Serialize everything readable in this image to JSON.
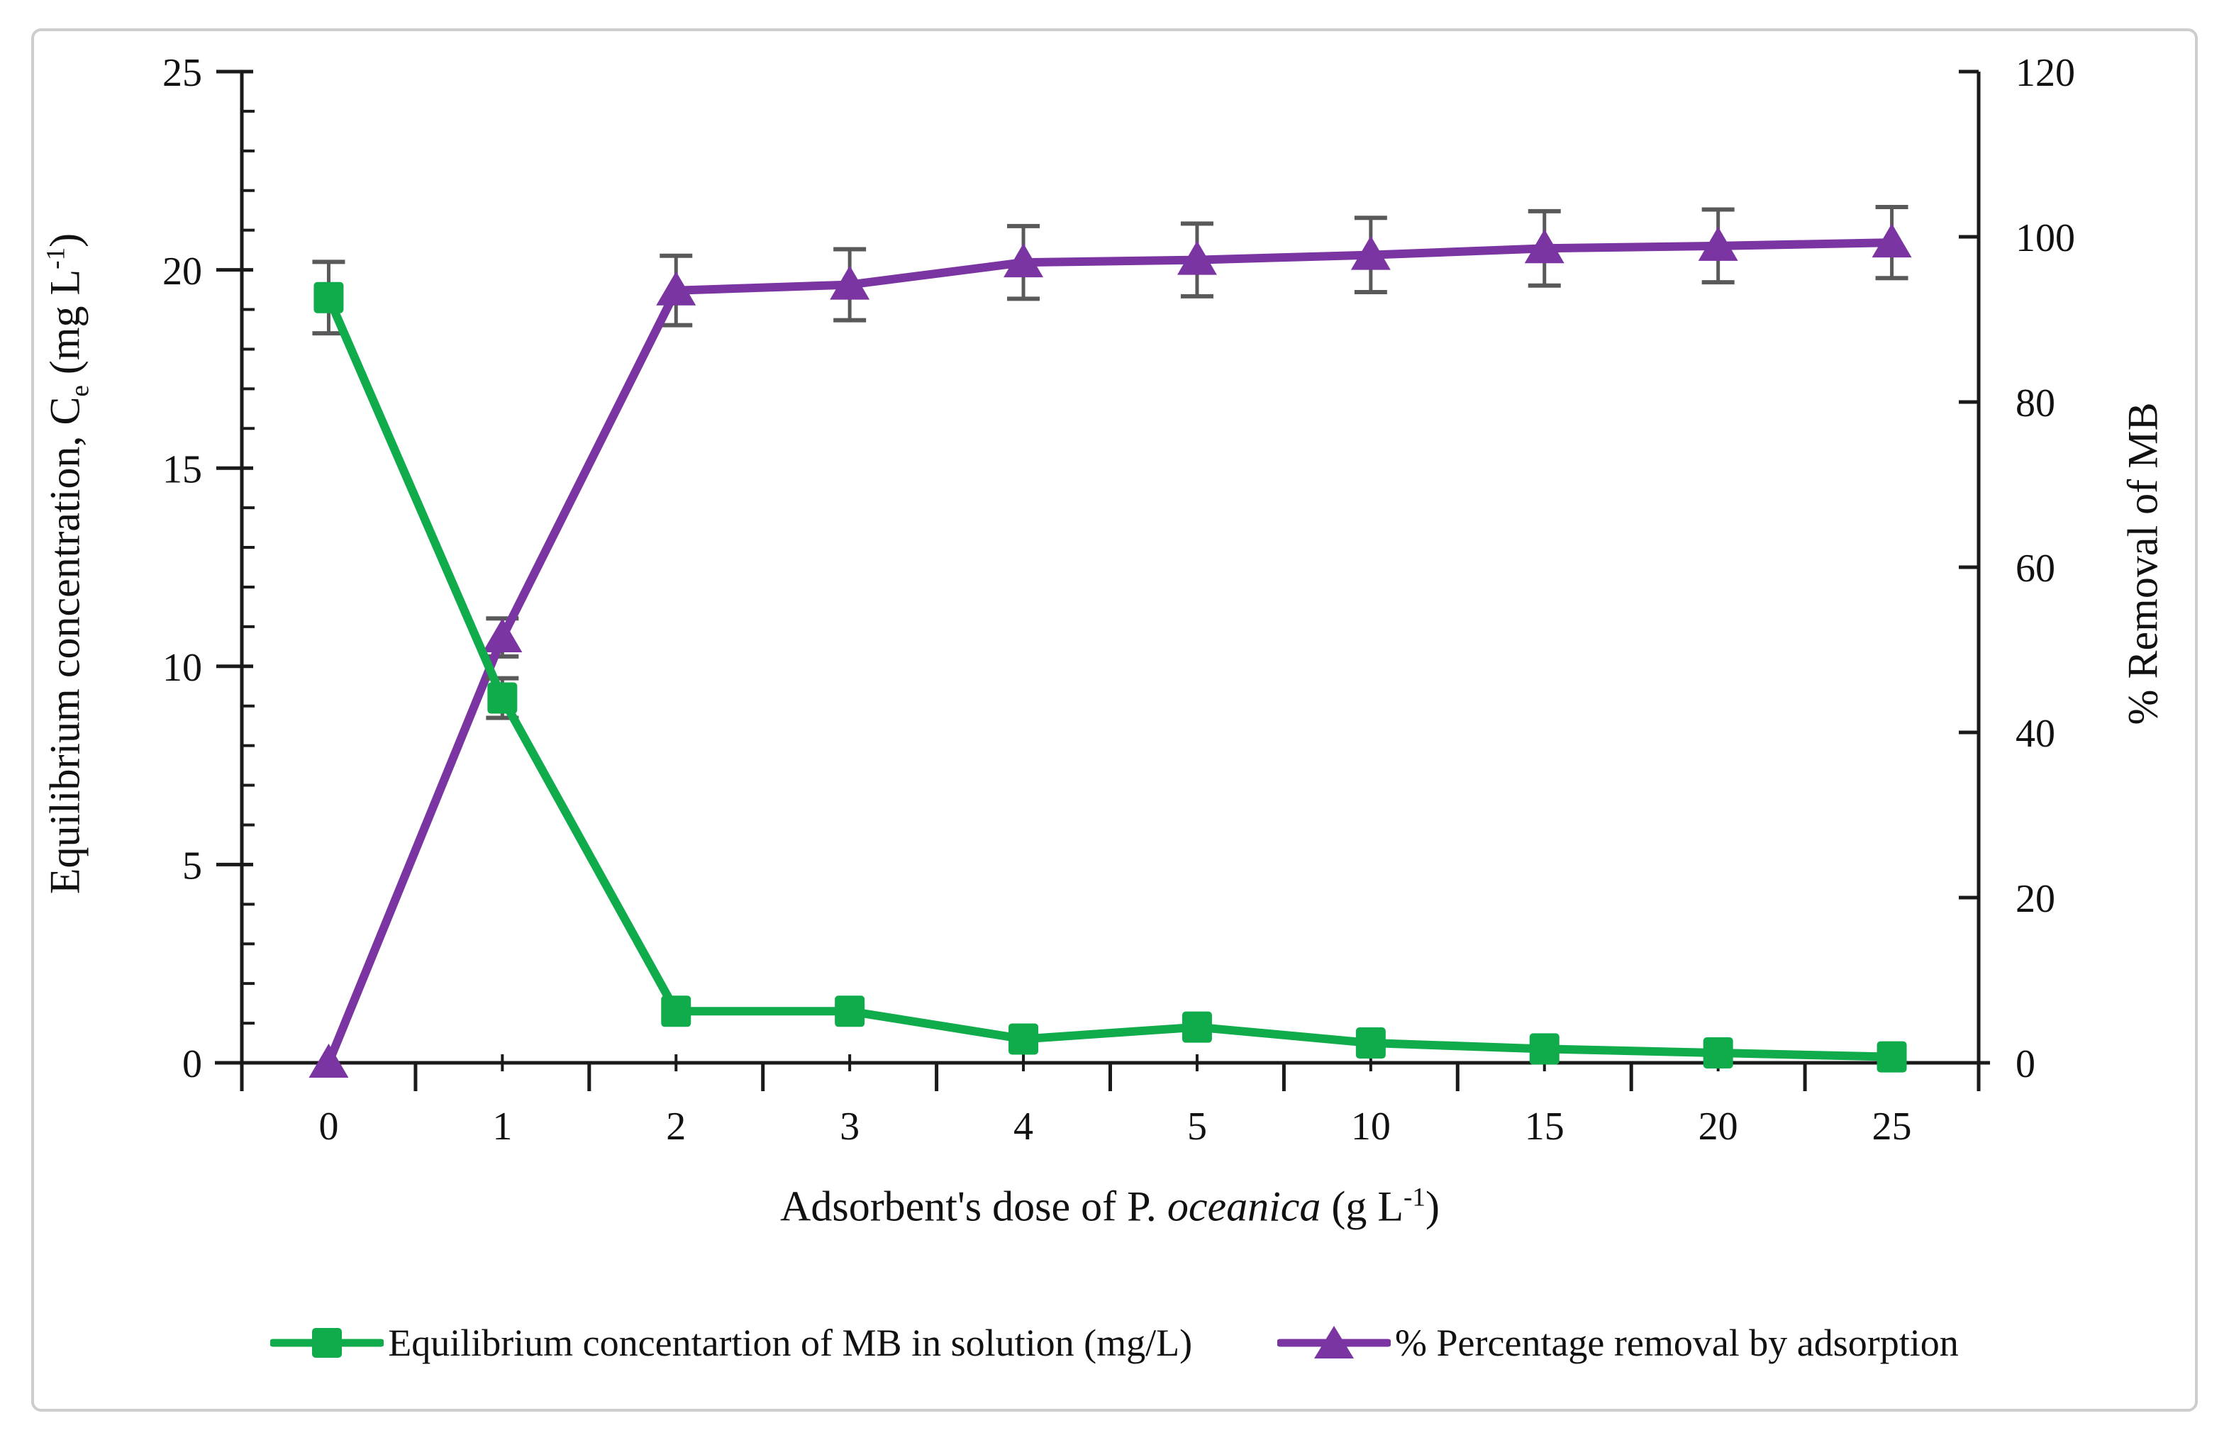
{
  "figure": {
    "background": "#ffffff",
    "border_color": "#cdcdcd"
  },
  "chart_data": {
    "type": "line",
    "categories": [
      "0",
      "1",
      "2",
      "3",
      "4",
      "5",
      "10",
      "15",
      "20",
      "25"
    ],
    "x_axis": {
      "title_prefix": "Adsorbent's dose of P. ",
      "title_italic": "oceanica",
      "title_unit_pre": " (g L",
      "title_unit_sup": "-1",
      "title_unit_post": ")"
    },
    "left_axis": {
      "title_pre": "Equilibrium concentration, C",
      "title_sub": "e",
      "title_unit_pre": " (mg L",
      "title_unit_sup": "-1",
      "title_unit_post": ")",
      "min": 0,
      "max": 25,
      "major_ticks": [
        0,
        5,
        10,
        15,
        20,
        25
      ],
      "minor_step": 1
    },
    "right_axis": {
      "title": "% Removal of MB",
      "min": 0,
      "max": 120,
      "major_ticks": [
        0,
        20,
        40,
        60,
        80,
        100,
        120
      ]
    },
    "series": [
      {
        "name": "Equilibrium concentartion of MB in solution (mg/L)",
        "axis": "left",
        "color": "#10AC4C",
        "marker": "square",
        "values": [
          19.3,
          9.2,
          1.3,
          1.3,
          0.6,
          0.9,
          0.5,
          0.35,
          0.25,
          0.15
        ],
        "error": [
          0.9,
          0.5,
          0,
          0,
          0,
          0,
          0,
          0,
          0,
          0
        ]
      },
      {
        "name": "% Percentage removal by adsorption",
        "axis": "right",
        "color": "#7B35A2",
        "marker": "triangle",
        "values": [
          0,
          51.5,
          93.5,
          94.2,
          96.9,
          97.2,
          97.8,
          98.6,
          98.9,
          99.3
        ],
        "error": [
          0,
          2.3,
          4.2,
          4.3,
          4.4,
          4.4,
          4.5,
          4.5,
          4.4,
          4.3
        ]
      }
    ],
    "grid": "off",
    "legend_position": "bottom",
    "axis_color": "#1a1a1a",
    "error_bar_color": "#595959"
  }
}
